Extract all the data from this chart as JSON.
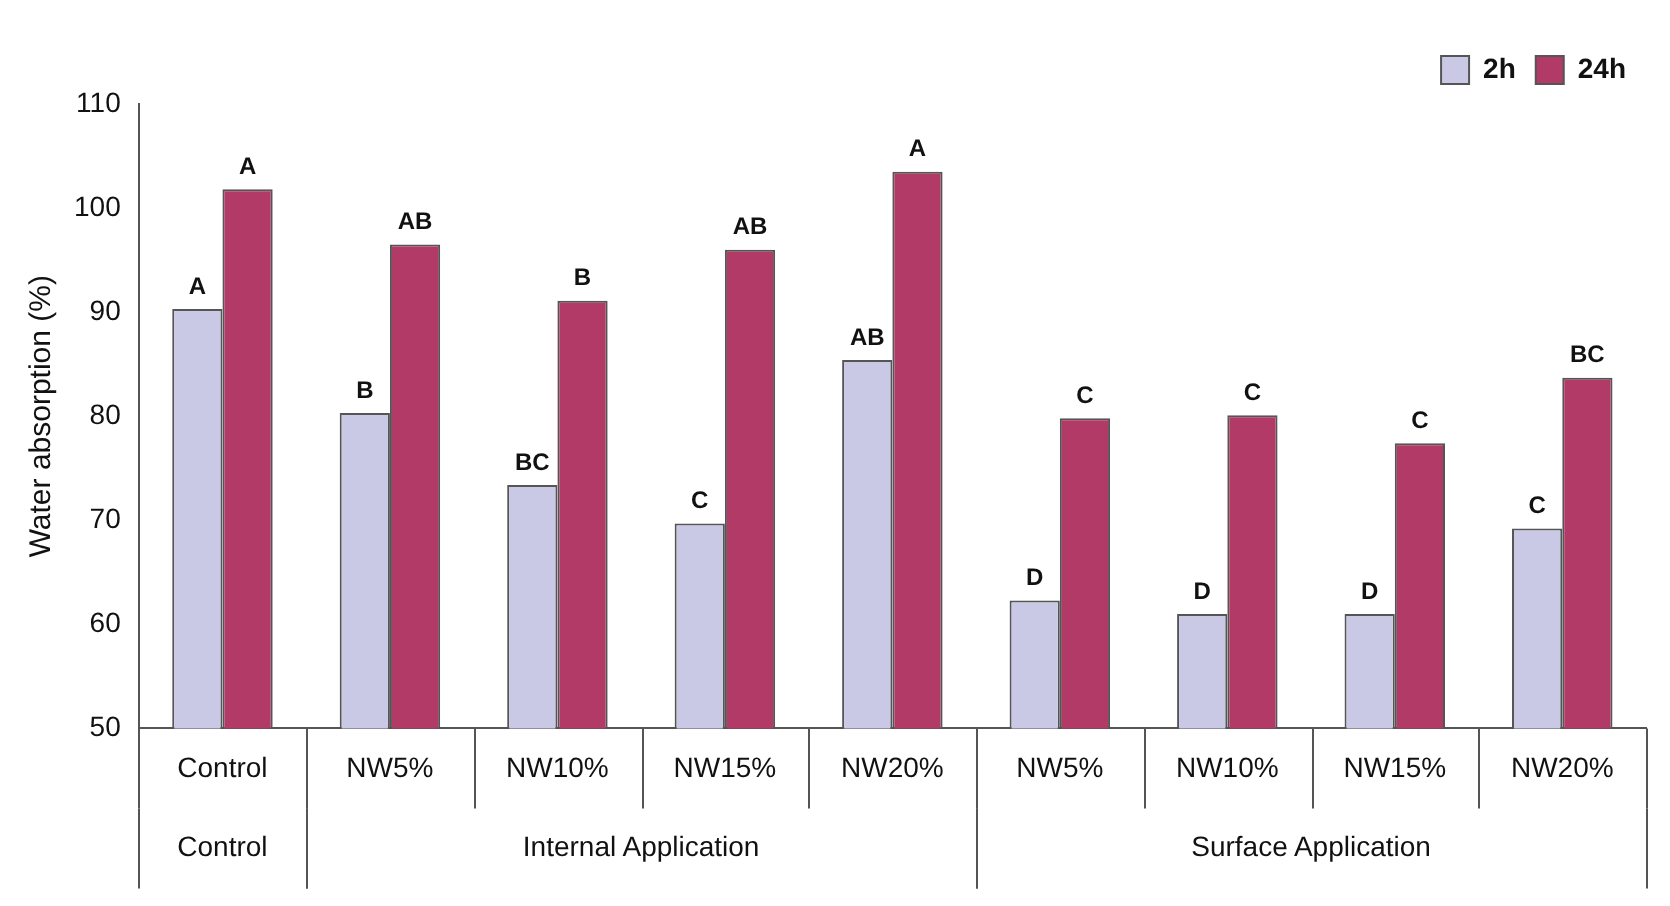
{
  "chart_data": {
    "type": "bar",
    "ylabel": "Water absorption (%)",
    "categories": [
      "Control",
      "NW5%",
      "NW10%",
      "NW15%",
      "NW20%",
      "NW5%",
      "NW10%",
      "NW15%",
      "NW20%"
    ],
    "series": [
      {
        "name": "2h",
        "color": "#c9c9e6",
        "values": [
          90.3,
          80.3,
          73.4,
          69.7,
          85.4,
          62.3,
          61.0,
          61.0,
          69.2
        ],
        "value_labels": [
          "A",
          "B",
          "BC",
          "C",
          "AB",
          "D",
          "D",
          "D",
          "C"
        ]
      },
      {
        "name": "24h",
        "color": "#b23a66",
        "values": [
          101.8,
          96.5,
          91.1,
          96.0,
          103.5,
          79.8,
          80.1,
          77.4,
          83.7
        ],
        "value_labels": [
          "A",
          "AB",
          "B",
          "AB",
          "A",
          "C",
          "C",
          "C",
          "BC"
        ]
      }
    ],
    "annotations": [
      "Control",
      "Internal Application",
      "Surface Application"
    ],
    "ylim": [
      50,
      110
    ],
    "yticks": [
      50,
      60,
      70,
      80,
      90,
      100,
      110
    ],
    "grid": false,
    "legend": "top right"
  }
}
